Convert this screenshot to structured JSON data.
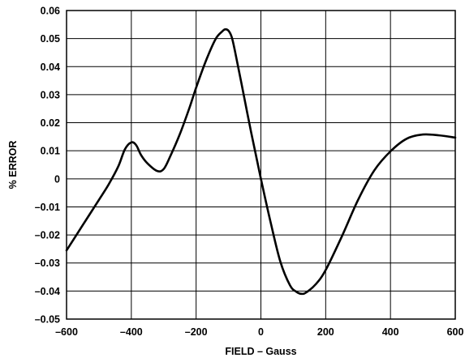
{
  "chart_data": {
    "type": "line",
    "xlabel": "FIELD – Gauss",
    "ylabel": "% ERROR",
    "xlim": [
      -600,
      600
    ],
    "ylim": [
      -0.05,
      0.06
    ],
    "xticks": [
      -600,
      -400,
      -200,
      0,
      200,
      400,
      600
    ],
    "xtick_labels": [
      "–600",
      "–400",
      "–200",
      "0",
      "200",
      "400",
      "600"
    ],
    "yticks": [
      0.06,
      0.05,
      0.04,
      0.03,
      0.02,
      0.01,
      0,
      -0.01,
      -0.02,
      -0.03,
      -0.04,
      -0.05
    ],
    "ytick_labels": [
      "0.06",
      "0.05",
      "0.04",
      "0.03",
      "0.02",
      "0.01",
      "0",
      "–0.01",
      "–0.02",
      "–0.03",
      "–0.04",
      "–0.05"
    ],
    "grid": true,
    "series": [
      {
        "color": "#000000",
        "x": [
          -600,
          -550,
          -500,
          -470,
          -440,
          -420,
          -400,
          -385,
          -370,
          -350,
          -320,
          -300,
          -280,
          -250,
          -220,
          -200,
          -170,
          -140,
          -120,
          -110,
          -100,
          -90,
          -80,
          -60,
          -30,
          0,
          30,
          60,
          90,
          110,
          125,
          140,
          170,
          200,
          250,
          300,
          350,
          400,
          450,
          500,
          550,
          600
        ],
        "y": [
          -0.0255,
          -0.0165,
          -0.0075,
          -0.002,
          0.0045,
          0.0105,
          0.013,
          0.012,
          0.0085,
          0.0055,
          0.0028,
          0.0035,
          0.008,
          0.016,
          0.0255,
          0.0325,
          0.042,
          0.0498,
          0.0525,
          0.0533,
          0.0528,
          0.0505,
          0.0455,
          0.034,
          0.0165,
          0.0,
          -0.0155,
          -0.0295,
          -0.038,
          -0.0403,
          -0.041,
          -0.0405,
          -0.0375,
          -0.0325,
          -0.0205,
          -0.0075,
          0.003,
          0.0098,
          0.0143,
          0.0158,
          0.0155,
          0.0147
        ]
      }
    ]
  }
}
